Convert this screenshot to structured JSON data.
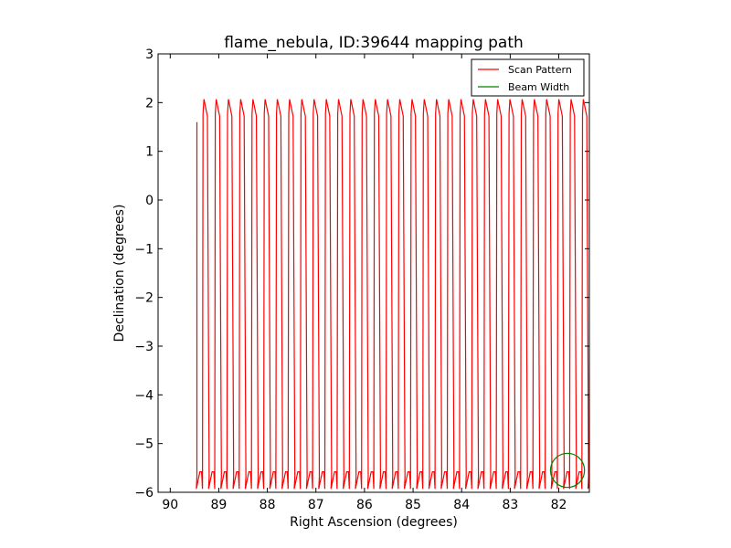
{
  "chart_data": {
    "type": "line",
    "title": "flame_nebula, ID:39644 mapping path",
    "xlabel": "Right Ascension (degrees)",
    "ylabel": "Declination (degrees)",
    "xlim": [
      90.25,
      81.37
    ],
    "ylim": [
      -6,
      3
    ],
    "x_ticks": [
      90,
      89,
      88,
      87,
      86,
      85,
      84,
      83,
      82
    ],
    "y_ticks": [
      3,
      2,
      1,
      0,
      -1,
      -2,
      -3,
      -4,
      -5,
      -6
    ],
    "x_tick_labels": [
      "90",
      "89",
      "88",
      "87",
      "86",
      "85",
      "84",
      "83",
      "82"
    ],
    "y_tick_labels": [
      "3",
      "2",
      "1",
      "0",
      "−1",
      "−2",
      "−3",
      "−4",
      "−5",
      "−6"
    ],
    "grid": false,
    "legend_position": "top-right",
    "series": [
      {
        "name": "Scan Pattern",
        "color": "#ff0000",
        "scan": {
          "start_ra": 89.45,
          "end_ra": 81.37,
          "leg_spacing": 0.252,
          "dec_top": 2.07,
          "dec_bottom": -5.93,
          "first_dec": 1.6,
          "turn_offset": 0.06,
          "turn_dec_shift": 0.35
        }
      },
      {
        "name": "Beam Width",
        "color": "#008000",
        "circle": {
          "ra": 81.82,
          "dec": -5.55,
          "radius_deg": 0.35
        }
      }
    ]
  }
}
